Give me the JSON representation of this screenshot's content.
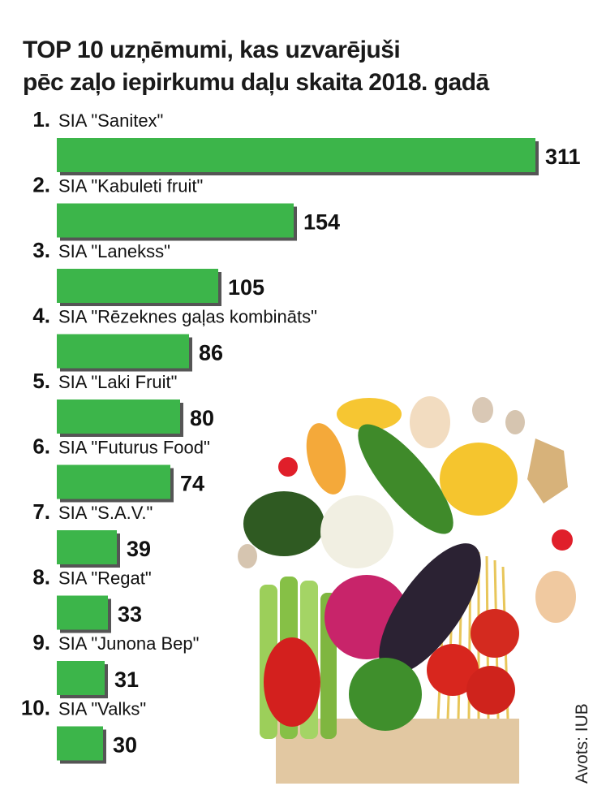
{
  "title": {
    "line1": "TOP 10 uzņēmumi, kas uzvarējuši",
    "line2": "pēc zaļo iepirkumu daļu skaita 2018. gadā"
  },
  "source": "Avots: IUB",
  "colors": {
    "bar": "#3cb54a",
    "bar_shadow": "#555555",
    "text": "#111111"
  },
  "illustration": "vegetables-in-paper-bag",
  "chart_data": {
    "type": "bar",
    "orientation": "horizontal",
    "title": "TOP 10 uzņēmumi, kas uzvarējuši pēc zaļo iepirkumu daļu skaita 2018. gadā",
    "ranks": [
      "1.",
      "2.",
      "3.",
      "4.",
      "5.",
      "6.",
      "7.",
      "8.",
      "9.",
      "10."
    ],
    "categories": [
      "SIA \"Sanitex\"",
      "SIA \"Kabuleti fruit\"",
      "SIA \"Lanekss\"",
      "SIA \"Rēzeknes gaļas kombināts\"",
      "SIA \"Laki Fruit\"",
      "SIA \"Futurus Food\"",
      "SIA \"S.A.V.\"",
      "SIA \"Regat\"",
      "SIA \"Junona Bep\"",
      "SIA \"Valks\""
    ],
    "values": [
      311,
      154,
      105,
      86,
      80,
      74,
      39,
      33,
      31,
      30
    ],
    "xlim": [
      0,
      311
    ],
    "grid": false,
    "legend": "none"
  }
}
